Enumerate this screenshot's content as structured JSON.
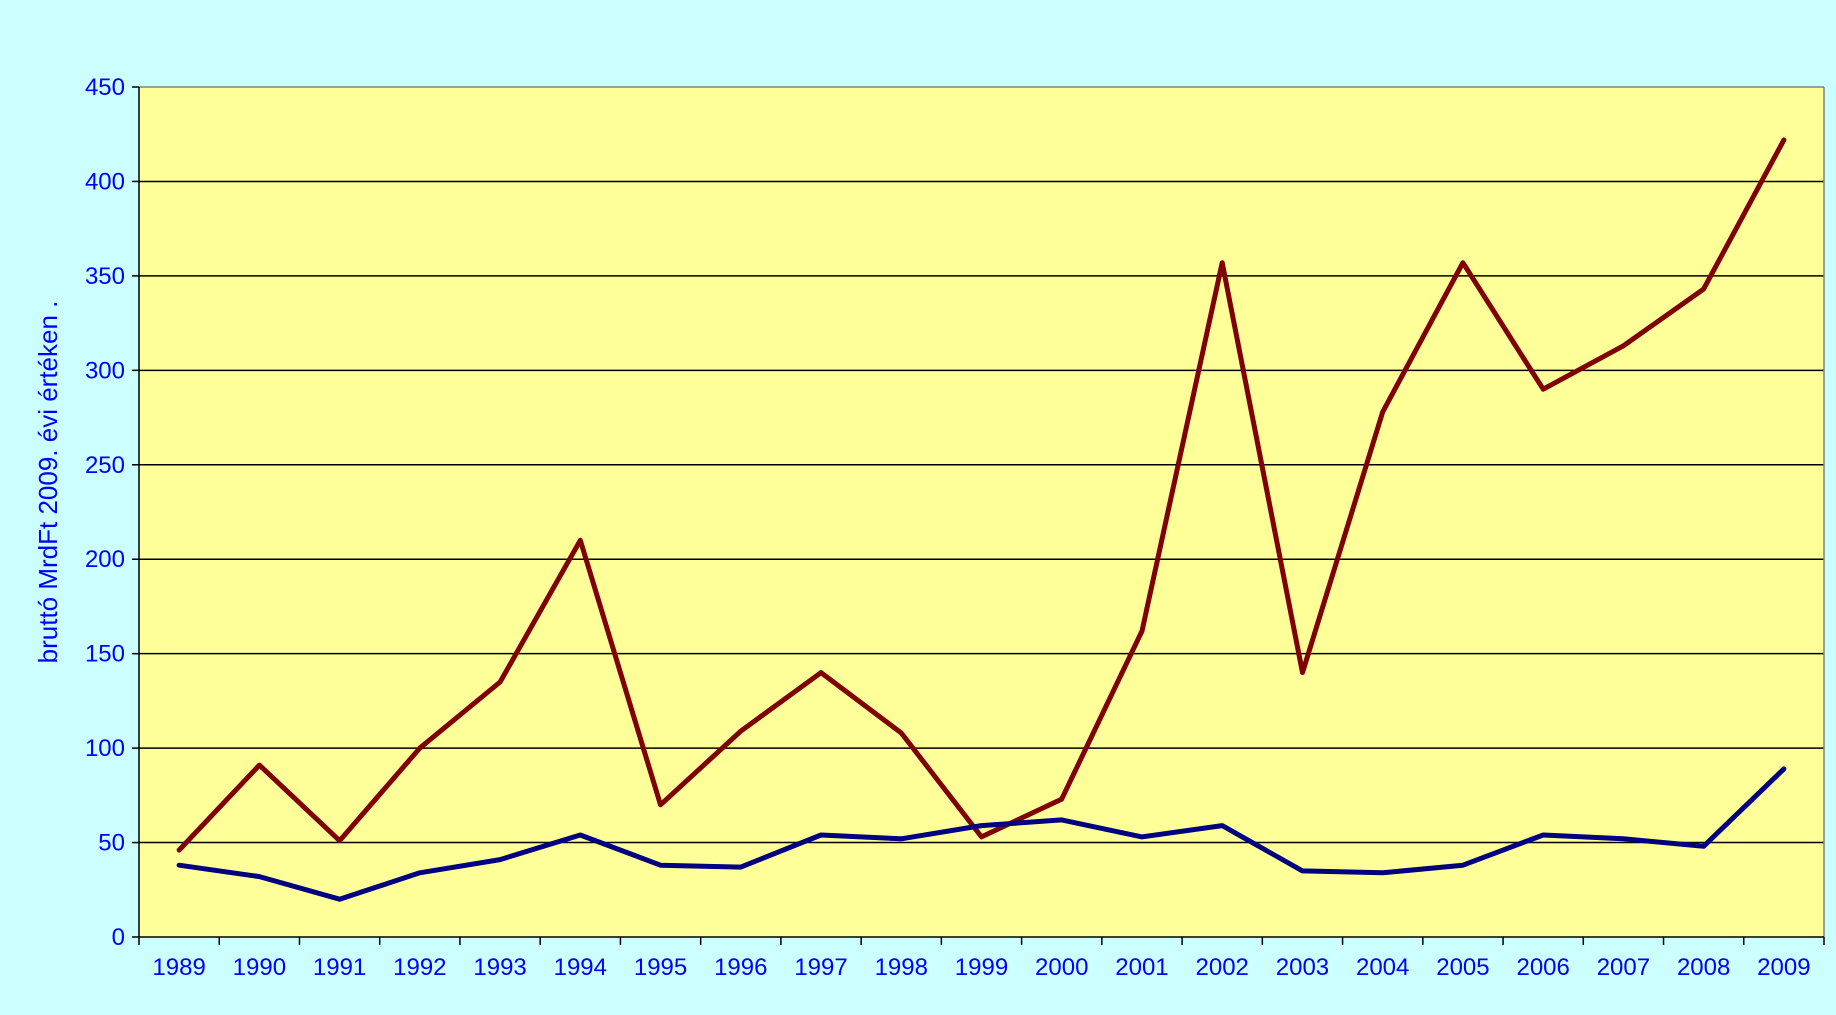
{
  "colors": {
    "background": "#ccffff",
    "plot_area": "#ffff99",
    "axis_text": "#0000ff",
    "series_1": "#800000",
    "series_2": "#000080",
    "gridline": "#000000"
  },
  "chart_data": {
    "type": "line",
    "title": "",
    "xlabel": "",
    "ylabel": "bruttó MrdFt 2009. évi értéken .",
    "ylim": [
      0,
      450
    ],
    "yticks": [
      0,
      50,
      100,
      150,
      200,
      250,
      300,
      350,
      400,
      450
    ],
    "grid": true,
    "legend": "none",
    "categories": [
      "1989",
      "1990",
      "1991",
      "1992",
      "1993",
      "1994",
      "1995",
      "1996",
      "1997",
      "1998",
      "1999",
      "2000",
      "2001",
      "2002",
      "2003",
      "2004",
      "2005",
      "2006",
      "2007",
      "2008",
      "2009"
    ],
    "series": [
      {
        "color": "#800000",
        "values": [
          46,
          91,
          51,
          100,
          135,
          210,
          70,
          109,
          140,
          108,
          53,
          73,
          162,
          357,
          140,
          278,
          357,
          290,
          313,
          343,
          422
        ]
      },
      {
        "color": "#000080",
        "values": [
          38,
          32,
          20,
          34,
          41,
          54,
          38,
          37,
          54,
          52,
          59,
          62,
          53,
          59,
          35,
          34,
          38,
          54,
          52,
          48,
          89
        ]
      }
    ]
  }
}
